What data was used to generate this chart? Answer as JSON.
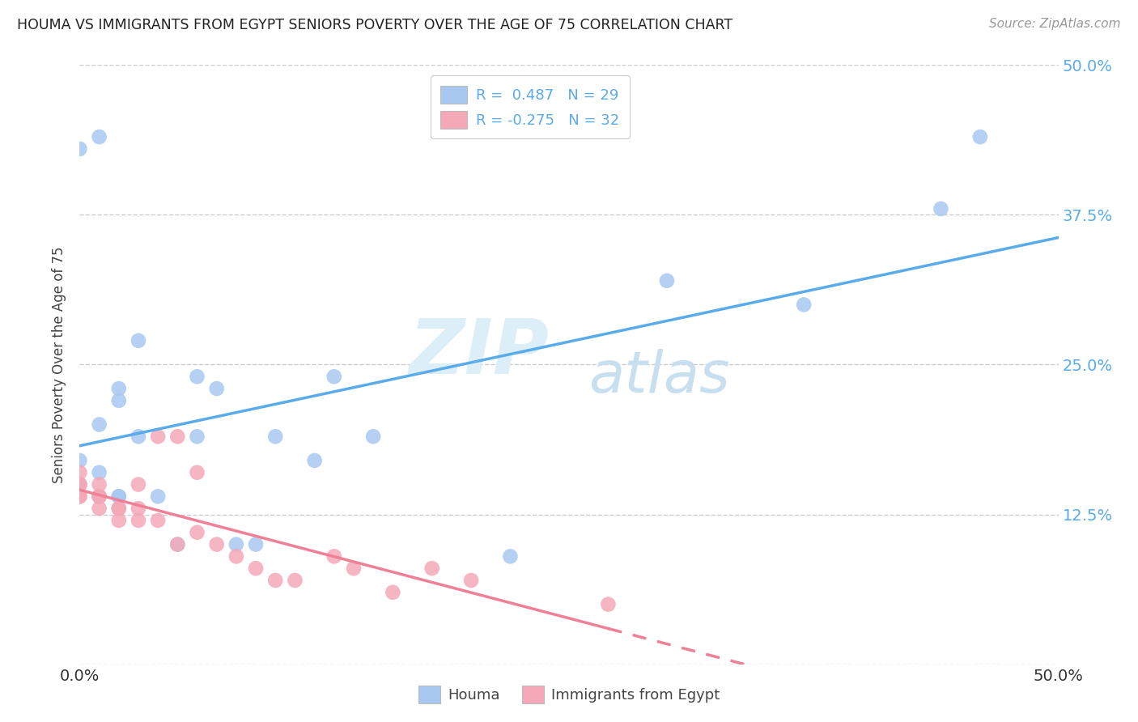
{
  "title": "HOUMA VS IMMIGRANTS FROM EGYPT SENIORS POVERTY OVER THE AGE OF 75 CORRELATION CHART",
  "source": "Source: ZipAtlas.com",
  "ylabel": "Seniors Poverty Over the Age of 75",
  "yticks": [
    0.0,
    0.125,
    0.25,
    0.375,
    0.5
  ],
  "ytick_labels": [
    "",
    "12.5%",
    "25.0%",
    "37.5%",
    "50.0%"
  ],
  "xlim": [
    0.0,
    0.5
  ],
  "ylim": [
    0.0,
    0.5
  ],
  "houma_R": 0.487,
  "houma_N": 29,
  "egypt_R": -0.275,
  "egypt_N": 32,
  "houma_color": "#a8c8f0",
  "egypt_color": "#f4a8b8",
  "houma_line_color": "#5aabea",
  "egypt_line_color": "#f08098",
  "legend_label_houma": "Houma",
  "legend_label_egypt": "Immigrants from Egypt",
  "watermark_zip": "ZIP",
  "watermark_atlas": "atlas",
  "tick_color": "#5aabea",
  "houma_x": [
    0.0,
    0.01,
    0.22,
    0.0,
    0.01,
    0.01,
    0.02,
    0.02,
    0.03,
    0.04,
    0.06,
    0.07,
    0.08,
    0.09,
    0.1,
    0.12,
    0.13,
    0.15,
    0.3,
    0.37,
    0.44,
    0.46,
    0.0,
    0.01,
    0.02,
    0.02,
    0.03,
    0.06,
    0.05
  ],
  "houma_y": [
    0.43,
    0.44,
    0.09,
    0.17,
    0.16,
    0.2,
    0.14,
    0.23,
    0.19,
    0.14,
    0.24,
    0.23,
    0.1,
    0.1,
    0.19,
    0.17,
    0.24,
    0.19,
    0.32,
    0.3,
    0.38,
    0.44,
    0.15,
    0.14,
    0.14,
    0.22,
    0.27,
    0.19,
    0.1
  ],
  "egypt_x": [
    0.0,
    0.0,
    0.0,
    0.0,
    0.0,
    0.01,
    0.01,
    0.01,
    0.01,
    0.02,
    0.02,
    0.02,
    0.03,
    0.03,
    0.03,
    0.04,
    0.04,
    0.05,
    0.05,
    0.06,
    0.06,
    0.07,
    0.08,
    0.09,
    0.1,
    0.11,
    0.13,
    0.14,
    0.16,
    0.18,
    0.2,
    0.27
  ],
  "egypt_y": [
    0.14,
    0.14,
    0.15,
    0.15,
    0.16,
    0.13,
    0.14,
    0.14,
    0.15,
    0.12,
    0.13,
    0.13,
    0.12,
    0.13,
    0.15,
    0.12,
    0.19,
    0.1,
    0.19,
    0.11,
    0.16,
    0.1,
    0.09,
    0.08,
    0.07,
    0.07,
    0.09,
    0.08,
    0.06,
    0.08,
    0.07,
    0.05
  ]
}
